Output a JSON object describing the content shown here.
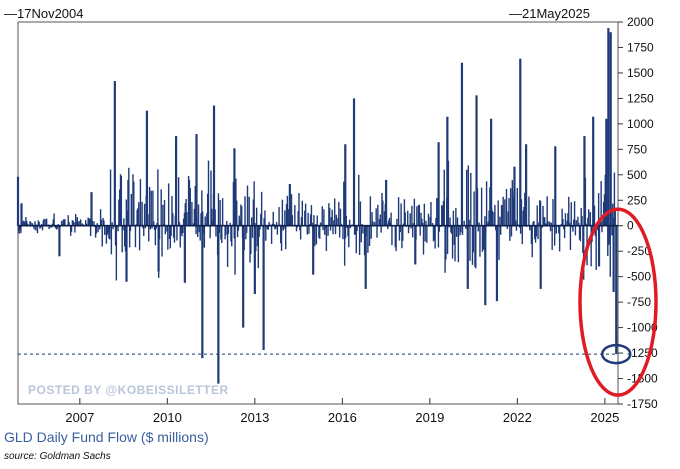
{
  "chart_data": {
    "type": "bar",
    "title": "GLD Daily Fund Flow ($ millions)",
    "source": "source: Goldman Sachs",
    "start_label": "17Nov2004",
    "end_label": "21May2025",
    "watermark": "POSTED BY @KOBEISSILETTER",
    "xlabel": "",
    "ylabel": "",
    "ylim": [
      -1750,
      2000
    ],
    "xlim": [
      2004.88,
      2025.45
    ],
    "yticks": [
      2000,
      1750,
      1500,
      1250,
      1000,
      750,
      500,
      250,
      0,
      -250,
      -500,
      -750,
      -1000,
      -1250,
      -1500,
      -1750
    ],
    "xticks": [
      "2007",
      "2010",
      "2013",
      "2016",
      "2019",
      "2022",
      "2025"
    ],
    "xtick_values": [
      2007,
      2010,
      2013,
      2016,
      2019,
      2022,
      2025
    ],
    "reference_line": -1260,
    "highlight_point": {
      "x": 2025.39,
      "y": -1260
    },
    "spikes": [
      {
        "x": 2004.88,
        "y": 480
      },
      {
        "x": 2005.0,
        "y": 220
      },
      {
        "x": 2006.3,
        "y": -300
      },
      {
        "x": 2007.4,
        "y": 330
      },
      {
        "x": 2008.2,
        "y": 1420
      },
      {
        "x": 2008.6,
        "y": -550
      },
      {
        "x": 2009.3,
        "y": 1130
      },
      {
        "x": 2009.7,
        "y": -450
      },
      {
        "x": 2010.3,
        "y": 880
      },
      {
        "x": 2010.6,
        "y": -560
      },
      {
        "x": 2011.0,
        "y": 900
      },
      {
        "x": 2011.2,
        "y": -1300
      },
      {
        "x": 2011.6,
        "y": 1180
      },
      {
        "x": 2011.75,
        "y": -1550
      },
      {
        "x": 2012.3,
        "y": 760
      },
      {
        "x": 2012.6,
        "y": -1000
      },
      {
        "x": 2013.0,
        "y": -670
      },
      {
        "x": 2013.3,
        "y": -1220
      },
      {
        "x": 2014.2,
        "y": 410
      },
      {
        "x": 2015.0,
        "y": -480
      },
      {
        "x": 2016.1,
        "y": 800
      },
      {
        "x": 2016.4,
        "y": 1250
      },
      {
        "x": 2016.8,
        "y": -620
      },
      {
        "x": 2017.5,
        "y": 450
      },
      {
        "x": 2018.5,
        "y": -380
      },
      {
        "x": 2019.3,
        "y": 820
      },
      {
        "x": 2019.6,
        "y": 1070
      },
      {
        "x": 2020.1,
        "y": 1600
      },
      {
        "x": 2020.3,
        "y": -620
      },
      {
        "x": 2020.6,
        "y": 1280
      },
      {
        "x": 2020.9,
        "y": -780
      },
      {
        "x": 2021.1,
        "y": 1050
      },
      {
        "x": 2021.3,
        "y": -740
      },
      {
        "x": 2021.9,
        "y": 580
      },
      {
        "x": 2022.1,
        "y": 1640
      },
      {
        "x": 2022.3,
        "y": 800
      },
      {
        "x": 2022.8,
        "y": -620
      },
      {
        "x": 2023.3,
        "y": 780
      },
      {
        "x": 2024.3,
        "y": 880
      },
      {
        "x": 2024.6,
        "y": 1070
      },
      {
        "x": 2024.8,
        "y": -400
      },
      {
        "x": 2025.05,
        "y": 1050
      },
      {
        "x": 2025.12,
        "y": 1940
      },
      {
        "x": 2025.2,
        "y": 1900
      },
      {
        "x": 2025.3,
        "y": -650
      },
      {
        "x": 2025.39,
        "y": -1260
      }
    ],
    "colors": {
      "bars": "#1f3a78",
      "axis_text": "#111111",
      "title": "#3a5f9e",
      "annotation": "#e01b24",
      "highlight": "#1f3a78"
    }
  }
}
